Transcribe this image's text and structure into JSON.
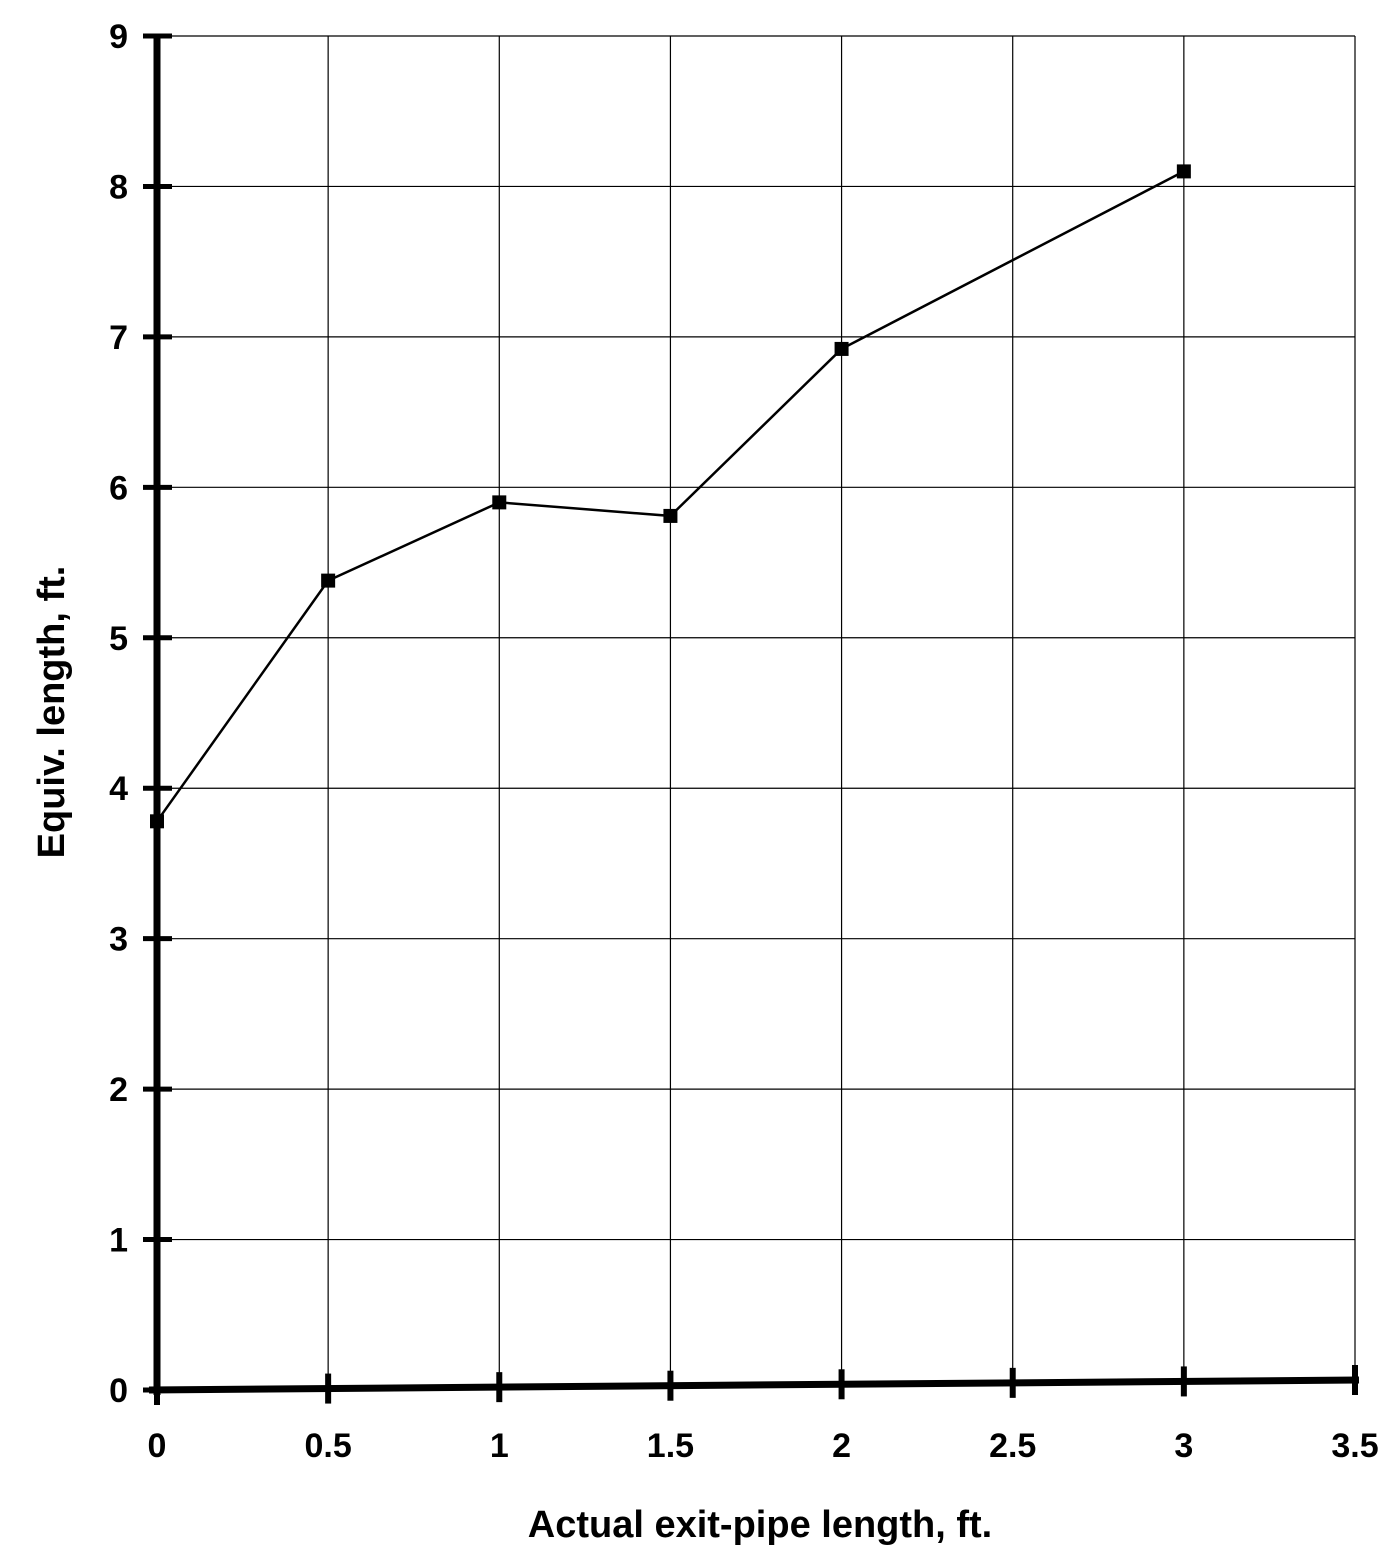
{
  "chart_data": {
    "type": "line",
    "title": "",
    "xlabel": "Actual exit-pipe length, ft.",
    "ylabel": "Equiv. length, ft.",
    "xlim": [
      0,
      3.5
    ],
    "ylim": [
      0,
      9
    ],
    "x_ticks": [
      "0",
      "0.5",
      "1",
      "1.5",
      "2",
      "2.5",
      "3",
      "3.5"
    ],
    "y_ticks": [
      "0",
      "1",
      "2",
      "3",
      "4",
      "5",
      "6",
      "7",
      "8",
      "9"
    ],
    "grid": true,
    "legend": "none",
    "series": [
      {
        "marker": "square",
        "color": "#000000",
        "points": [
          {
            "x": 0,
            "y": 3.78
          },
          {
            "x": 0.5,
            "y": 5.38
          },
          {
            "x": 1,
            "y": 5.9
          },
          {
            "x": 1.5,
            "y": 5.81
          },
          {
            "x": 2,
            "y": 6.92
          },
          {
            "x": 3,
            "y": 8.1
          }
        ]
      }
    ]
  }
}
